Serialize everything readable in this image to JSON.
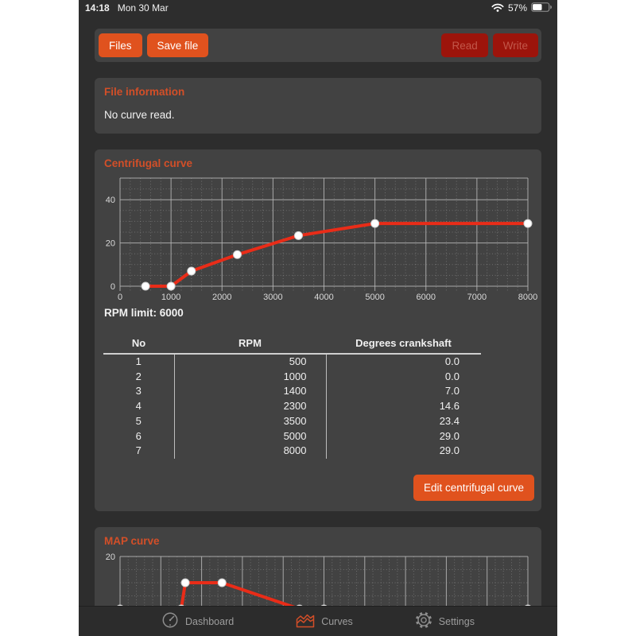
{
  "status_bar": {
    "time": "14:18",
    "date": "Mon 30 Mar",
    "battery_percent": "57%"
  },
  "toolbar": {
    "files_label": "Files",
    "save_file_label": "Save file",
    "read_label": "Read",
    "write_label": "Write"
  },
  "file_information": {
    "title": "File information",
    "message": "No curve read."
  },
  "centrifugal": {
    "title": "Centrifugal curve",
    "rpm_limit": "RPM limit: 6000",
    "edit_button_label": "Edit centrifugal curve",
    "table": {
      "headers": [
        "No",
        "RPM",
        "Degrees crankshaft"
      ],
      "rows": [
        [
          "1",
          "500",
          "0.0"
        ],
        [
          "2",
          "1000",
          "0.0"
        ],
        [
          "3",
          "1400",
          "7.0"
        ],
        [
          "4",
          "2300",
          "14.6"
        ],
        [
          "5",
          "3500",
          "23.4"
        ],
        [
          "6",
          "5000",
          "29.0"
        ],
        [
          "7",
          "8000",
          "29.0"
        ]
      ]
    }
  },
  "map": {
    "title": "MAP curve"
  },
  "tab_bar": {
    "items": [
      {
        "label": "Dashboard",
        "icon": "gauge-icon",
        "active": false
      },
      {
        "label": "Curves",
        "icon": "curves-icon",
        "active": true
      },
      {
        "label": "Settings",
        "icon": "gear-icon",
        "active": false
      }
    ]
  },
  "colors": {
    "accent_button_orange": "#e0521e",
    "title_orange": "#d34f28",
    "disabled_button_bg": "#9c140b",
    "disabled_button_text": "#c2574a",
    "curve_red": "#e92c18",
    "panel_bg": "#424242",
    "page_bg": "#2d2d2d",
    "tabbar_bg": "#2c2c2c"
  },
  "chart_data": [
    {
      "type": "line",
      "title": "Centrifugal curve",
      "x": [
        500,
        1000,
        1400,
        2300,
        3500,
        5000,
        8000
      ],
      "y": [
        0.0,
        0.0,
        7.0,
        14.6,
        23.4,
        29.0,
        29.0
      ],
      "xlabel": "RPM",
      "ylabel": "Degrees crankshaft",
      "xlim": [
        0,
        8000
      ],
      "ylim": [
        -2,
        50
      ],
      "xticks": [
        0,
        1000,
        2000,
        3000,
        4000,
        5000,
        6000,
        7000,
        8000
      ],
      "yticks": [
        0,
        20,
        40
      ],
      "x_major": 1000,
      "x_minor": 200,
      "y_minor": 5,
      "y_minor_range": [
        5,
        45
      ],
      "grid": true,
      "line_color": "#e92c18",
      "marker": "circle",
      "marker_color": "#ffffff"
    },
    {
      "type": "line",
      "title": "MAP curve",
      "x": [
        0,
        15,
        16,
        25,
        44,
        50,
        100
      ],
      "y": [
        0,
        0,
        10,
        10,
        0,
        0,
        0
      ],
      "xlabel": "",
      "ylabel": "",
      "xlim": [
        0,
        100
      ],
      "ylim": [
        -14,
        20
      ],
      "xticks": [],
      "yticks": [
        0,
        20
      ],
      "x_major": 10,
      "x_minor": 2,
      "y_minor": 5,
      "y_minor_range": [
        -10,
        15
      ],
      "grid": true,
      "line_color": "#e92c18",
      "marker": "circle",
      "marker_color": "#ffffff"
    }
  ]
}
